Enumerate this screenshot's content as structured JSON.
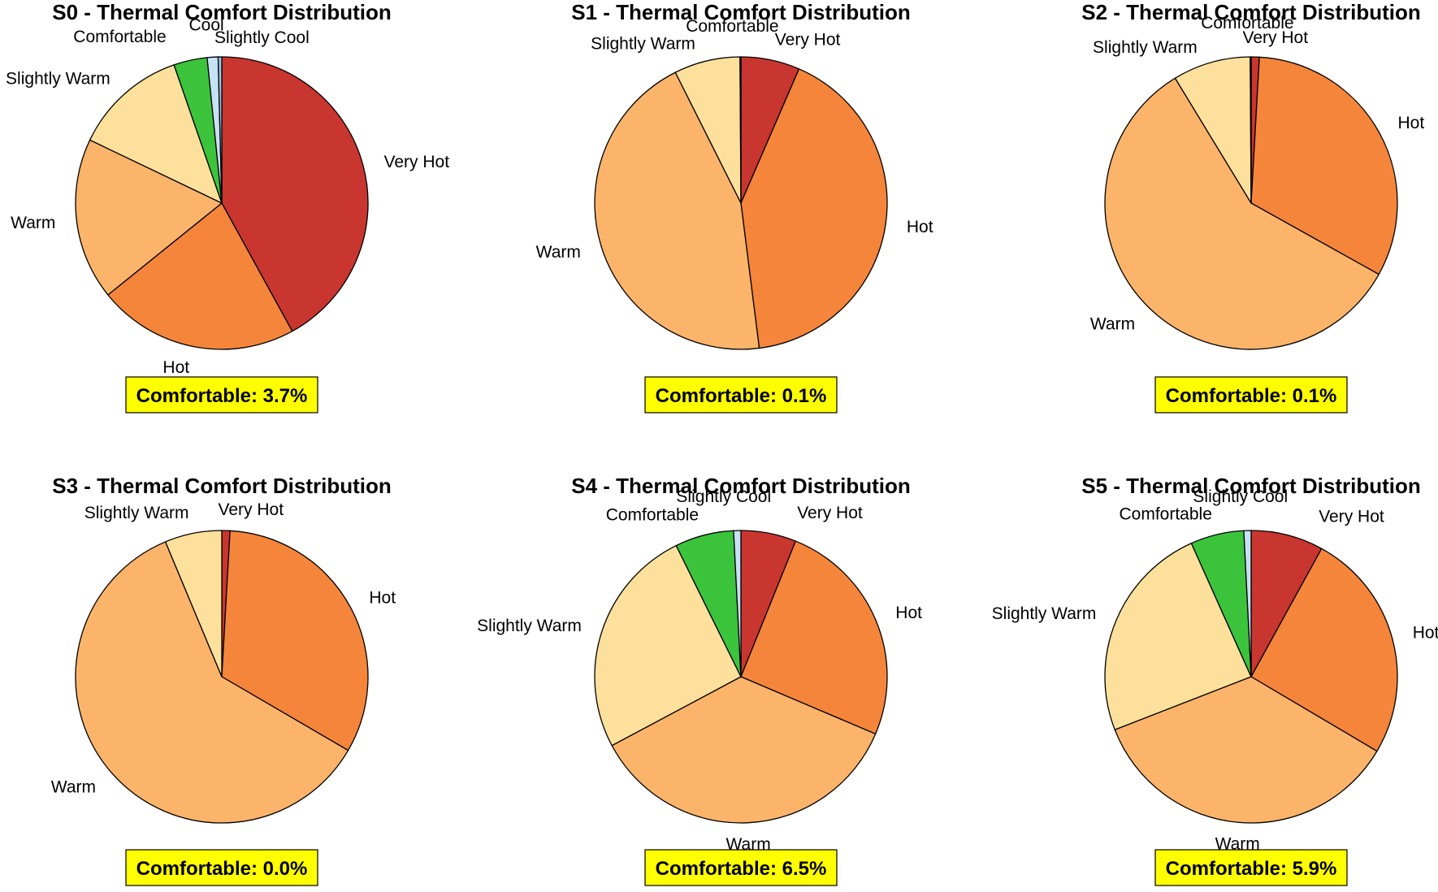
{
  "chart_data": [
    {
      "type": "pie",
      "title": "S0 - Thermal Comfort Distribution",
      "comfort_label": "Comfortable: 3.7%",
      "slices": [
        {
          "label": "Very Hot",
          "value": 42.0,
          "color": "#c8362f"
        },
        {
          "label": "Hot",
          "value": 22.2,
          "color": "#f5853a"
        },
        {
          "label": "Warm",
          "value": 17.9,
          "color": "#fbb46a"
        },
        {
          "label": "Slightly Warm",
          "value": 12.6,
          "color": "#fde09b"
        },
        {
          "label": "Comfortable",
          "value": 3.7,
          "color": "#3cc33c"
        },
        {
          "label": "Cool",
          "value": 1.2,
          "color": "#c6e2f5"
        },
        {
          "label": "Slightly Cool",
          "value": 0.4,
          "color": "#9cc6e8"
        }
      ]
    },
    {
      "type": "pie",
      "title": "S1 - Thermal Comfort Distribution",
      "comfort_label": "Comfortable: 0.1%",
      "slices": [
        {
          "label": "Very Hot",
          "value": 6.5,
          "color": "#c8362f"
        },
        {
          "label": "Hot",
          "value": 41.5,
          "color": "#f5853a"
        },
        {
          "label": "Warm",
          "value": 44.6,
          "color": "#fbb46a"
        },
        {
          "label": "Slightly Warm",
          "value": 7.3,
          "color": "#fde09b"
        },
        {
          "label": "Comfortable",
          "value": 0.1,
          "color": "#3cc33c"
        }
      ]
    },
    {
      "type": "pie",
      "title": "S2 - Thermal Comfort Distribution",
      "comfort_label": "Comfortable: 0.1%",
      "slices": [
        {
          "label": "Very Hot",
          "value": 0.9,
          "color": "#c8362f"
        },
        {
          "label": "Hot",
          "value": 32.2,
          "color": "#f5853a"
        },
        {
          "label": "Warm",
          "value": 58.2,
          "color": "#fbb46a"
        },
        {
          "label": "Slightly Warm",
          "value": 8.6,
          "color": "#fde09b"
        },
        {
          "label": "Comfortable",
          "value": 0.1,
          "color": "#3cc33c"
        }
      ]
    },
    {
      "type": "pie",
      "title": "S3 - Thermal Comfort Distribution",
      "comfort_label": "Comfortable: 0.0%",
      "slices": [
        {
          "label": "Very Hot",
          "value": 0.9,
          "color": "#c8362f"
        },
        {
          "label": "Hot",
          "value": 32.5,
          "color": "#f5853a"
        },
        {
          "label": "Warm",
          "value": 60.3,
          "color": "#fbb46a"
        },
        {
          "label": "Slightly Warm",
          "value": 6.3,
          "color": "#fde09b"
        }
      ]
    },
    {
      "type": "pie",
      "title": "S4 - Thermal Comfort Distribution",
      "comfort_label": "Comfortable: 6.5%",
      "slices": [
        {
          "label": "Very Hot",
          "value": 6.1,
          "color": "#c8362f"
        },
        {
          "label": "Hot",
          "value": 25.3,
          "color": "#f5853a"
        },
        {
          "label": "Warm",
          "value": 35.8,
          "color": "#fbb46a"
        },
        {
          "label": "Slightly Warm",
          "value": 25.5,
          "color": "#fde09b"
        },
        {
          "label": "Comfortable",
          "value": 6.5,
          "color": "#3cc33c"
        },
        {
          "label": "Slightly Cool",
          "value": 0.8,
          "color": "#c6e2f5"
        }
      ]
    },
    {
      "type": "pie",
      "title": "S5 - Thermal Comfort Distribution",
      "comfort_label": "Comfortable: 5.9%",
      "slices": [
        {
          "label": "Very Hot",
          "value": 8.0,
          "color": "#c8362f"
        },
        {
          "label": "Hot",
          "value": 25.5,
          "color": "#f5853a"
        },
        {
          "label": "Warm",
          "value": 35.6,
          "color": "#fbb46a"
        },
        {
          "label": "Slightly Warm",
          "value": 24.2,
          "color": "#fde09b"
        },
        {
          "label": "Comfortable",
          "value": 5.9,
          "color": "#3cc33c"
        },
        {
          "label": "Slightly Cool",
          "value": 0.8,
          "color": "#c6e2f5"
        }
      ]
    }
  ],
  "comfort_badge_color": "#ffff00"
}
